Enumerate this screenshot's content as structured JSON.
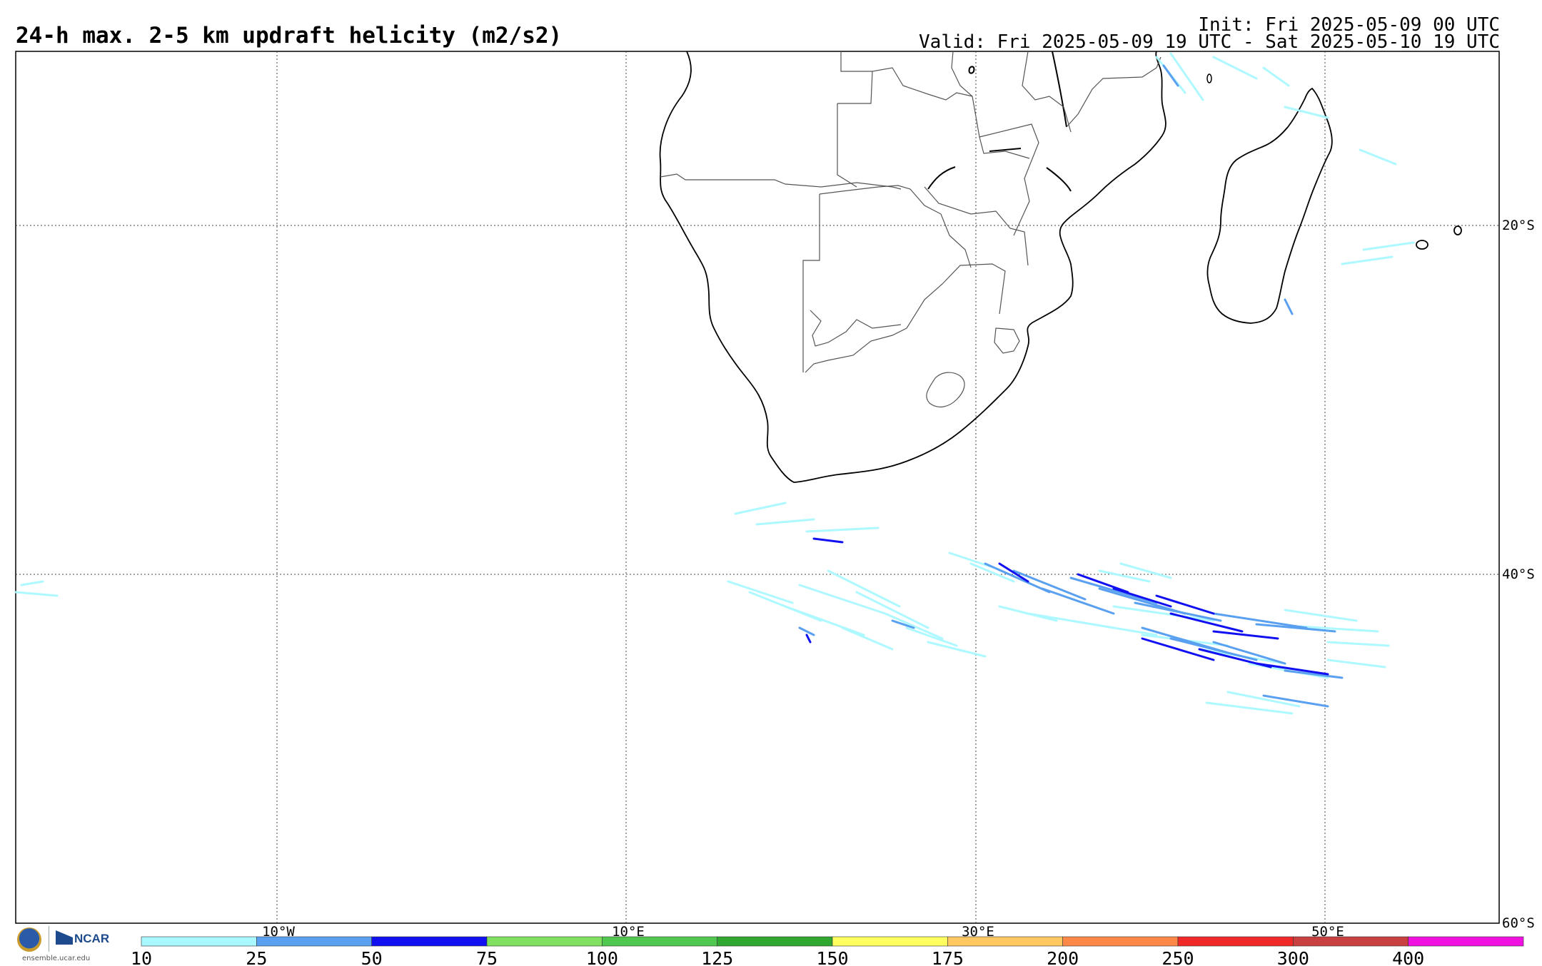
{
  "header": {
    "title": "24-h max. 2-5 km updraft helicity (m2/s2)",
    "init": "Init: Fri 2025-05-09 00 UTC",
    "valid": "Valid: Fri 2025-05-09 19 UTC - Sat 2025-05-10 19 UTC"
  },
  "map": {
    "lon_range": [
      -25,
      60
    ],
    "lat_range": [
      -60,
      -10
    ],
    "lon_labels": [
      "10°W",
      "10°E",
      "30°E",
      "50°E"
    ],
    "lat_labels": [
      "20°S",
      "40°S",
      "60°S"
    ],
    "grid": "dotted"
  },
  "colorbar": {
    "levels": [
      "10",
      "25",
      "50",
      "75",
      "100",
      "125",
      "150",
      "175",
      "200",
      "250",
      "300",
      "400"
    ],
    "colors": [
      "#aaf8ff",
      "#5aa0f0",
      "#1010f0",
      "#80e060",
      "#50c850",
      "#30a830",
      "#ffff60",
      "#ffc860",
      "#ff8848",
      "#f02828",
      "#c84040",
      "#f010e0"
    ]
  },
  "logos": {
    "nsf_icon": "nsf-logo-icon",
    "ncar_text": "NCAR",
    "url": "ensemble.ucar.edu"
  }
}
